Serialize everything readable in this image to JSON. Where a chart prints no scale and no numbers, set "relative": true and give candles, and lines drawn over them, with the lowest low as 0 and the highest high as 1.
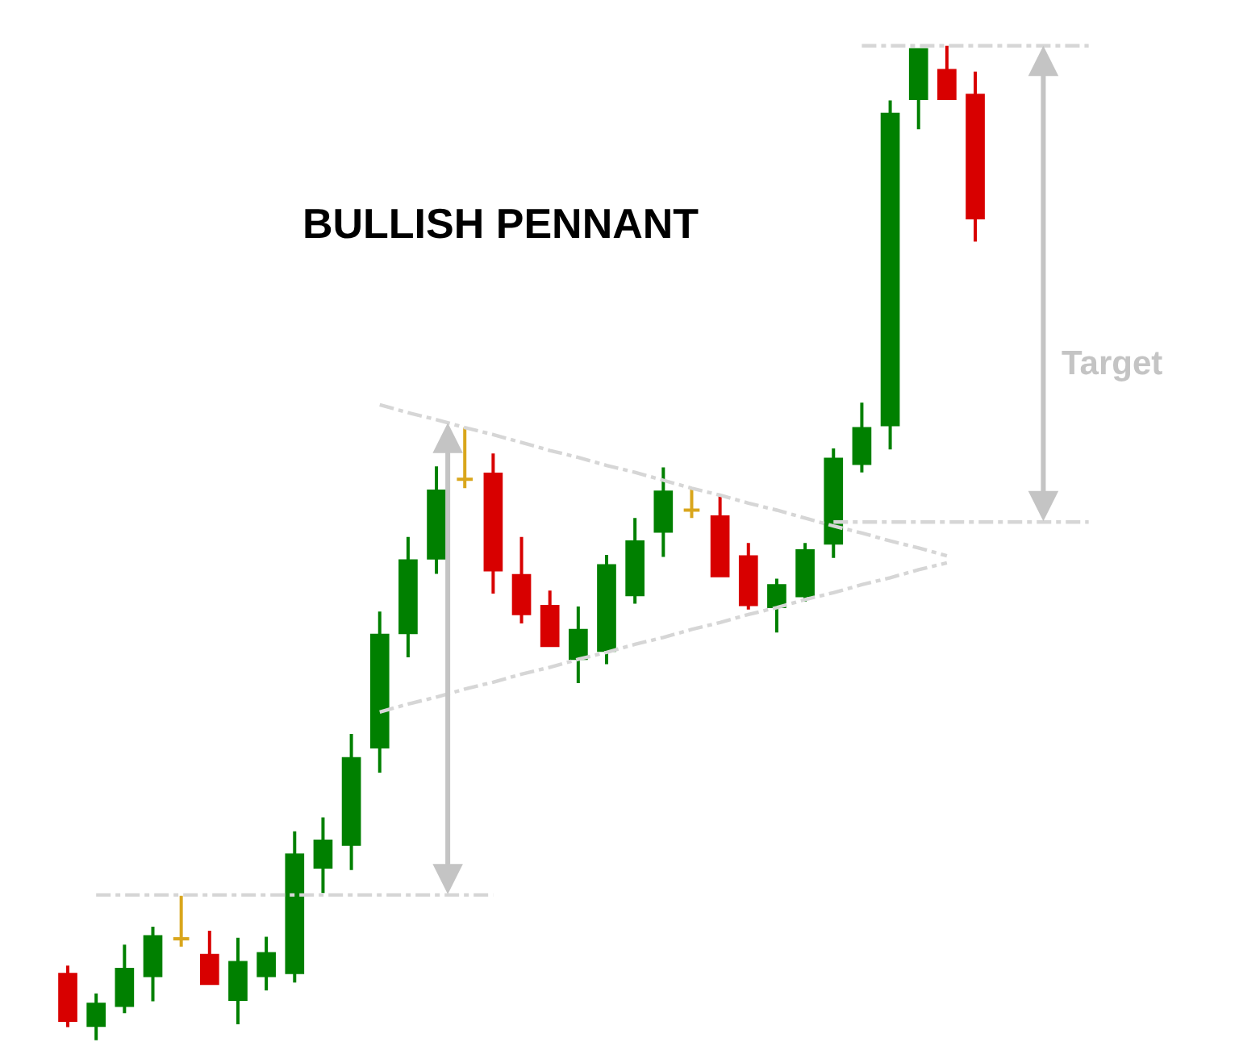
{
  "chart_data": {
    "type": "candlestick",
    "title": "BULLISH PENNANT",
    "relative": true,
    "categories": [
      null,
      null,
      null,
      null,
      null,
      null,
      null,
      null,
      null,
      null,
      null,
      null,
      null,
      null,
      null,
      null,
      null,
      null,
      null,
      null,
      null,
      null,
      null,
      null,
      null,
      null,
      null,
      null,
      null,
      null,
      null,
      null,
      null,
      null,
      null,
      null,
      null
    ],
    "ohlc": [
      [
        0.066,
        0.075,
        0.013,
        0.02
      ],
      [
        0.015,
        0.047,
        0.0,
        0.036
      ],
      [
        0.035,
        0.096,
        0.027,
        0.071
      ],
      [
        0.065,
        0.114,
        0.039,
        0.104
      ],
      [
        0.102,
        0.145,
        0.094,
        0.102
      ],
      [
        0.085,
        0.11,
        0.057,
        0.057
      ],
      [
        0.041,
        0.103,
        0.016,
        0.078
      ],
      [
        0.065,
        0.104,
        0.05,
        0.087
      ],
      [
        0.068,
        0.21,
        0.058,
        0.186
      ],
      [
        0.174,
        0.224,
        0.148,
        0.2
      ],
      [
        0.197,
        0.308,
        0.171,
        0.283
      ],
      [
        0.295,
        0.431,
        0.269,
        0.407
      ],
      [
        0.41,
        0.506,
        0.385,
        0.482
      ],
      [
        0.485,
        0.577,
        0.469,
        0.552
      ],
      [
        0.564,
        0.616,
        0.555,
        0.564
      ],
      [
        0.569,
        0.59,
        0.449,
        0.473
      ],
      [
        0.467,
        0.506,
        0.419,
        0.429
      ],
      [
        0.436,
        0.452,
        0.397,
        0.397
      ],
      [
        0.384,
        0.436,
        0.359,
        0.412
      ],
      [
        0.392,
        0.488,
        0.378,
        0.477
      ],
      [
        0.448,
        0.525,
        0.439,
        0.501
      ],
      [
        0.512,
        0.576,
        0.486,
        0.551
      ],
      [
        0.533,
        0.555,
        0.525,
        0.533
      ],
      [
        0.526,
        0.548,
        0.467,
        0.467
      ],
      [
        0.486,
        0.5,
        0.433,
        0.438
      ],
      [
        0.436,
        0.464,
        0.41,
        0.457
      ],
      [
        0.447,
        0.5,
        0.441,
        0.492
      ],
      [
        0.5,
        0.595,
        0.485,
        0.584
      ],
      [
        0.58,
        0.641,
        0.571,
        0.615
      ],
      [
        0.619,
        0.945,
        0.594,
        0.931
      ],
      [
        0.947,
        0.996,
        0.916,
        0.996
      ],
      [
        0.975,
        1.0,
        0.947,
        0.947
      ],
      [
        0.95,
        0.974,
        0.803,
        0.827
      ],
      null,
      null,
      null,
      null
    ],
    "colors": [
      "#d80000",
      "#008000",
      "#008000",
      "#008000",
      "#d9a61c",
      "#d80000",
      "#008000",
      "#008000",
      "#008000",
      "#008000",
      "#008000",
      "#008000",
      "#008000",
      "#008000",
      "#d9a61c",
      "#d80000",
      "#d80000",
      "#d80000",
      "#008000",
      "#008000",
      "#008000",
      "#008000",
      "#d9a61c",
      "#d80000",
      "#d80000",
      "#008000",
      "#008000",
      "#008000",
      "#008000",
      "#008000",
      "#008000",
      "#d80000",
      "#d80000",
      null,
      null,
      null,
      null
    ],
    "series": [
      {
        "type": "line",
        "color": "#d6d6d6",
        "line_style": "dashed",
        "values": [
          null,
          0.146,
          0.146,
          0.146,
          0.146,
          0.146,
          0.146,
          0.146,
          0.146,
          0.146,
          0.146,
          0.146,
          0.146,
          0.146,
          0.146,
          0.146,
          null,
          null,
          null,
          null,
          null,
          null,
          null,
          null,
          null,
          null,
          null,
          null,
          null,
          null,
          null,
          null,
          null,
          null,
          null,
          null,
          null
        ]
      },
      {
        "type": "line",
        "color": "#d6d6d6",
        "line_style": "dashed",
        "values": [
          null,
          null,
          null,
          null,
          null,
          null,
          null,
          null,
          null,
          null,
          null,
          0.639,
          0.631,
          0.624,
          0.616,
          0.609,
          0.601,
          0.593,
          0.586,
          0.578,
          0.571,
          0.563,
          0.555,
          0.548,
          0.54,
          0.533,
          0.525,
          0.517,
          0.51,
          0.502,
          0.495,
          0.487,
          null,
          null,
          null,
          null,
          null
        ]
      },
      {
        "type": "line",
        "color": "#d6d6d6",
        "line_style": "dashed",
        "values": [
          null,
          null,
          null,
          null,
          null,
          null,
          null,
          null,
          null,
          null,
          null,
          0.33,
          0.338,
          0.345,
          0.353,
          0.36,
          0.368,
          0.375,
          0.383,
          0.39,
          0.398,
          0.405,
          0.413,
          0.42,
          0.428,
          0.435,
          0.443,
          0.45,
          0.458,
          0.465,
          0.473,
          0.48,
          null,
          null,
          null,
          null,
          null
        ]
      },
      {
        "type": "line",
        "color": "#d6d6d6",
        "line_style": "dashed",
        "values": [
          null,
          null,
          null,
          null,
          null,
          null,
          null,
          null,
          null,
          null,
          null,
          null,
          null,
          null,
          null,
          null,
          null,
          null,
          null,
          null,
          null,
          null,
          null,
          null,
          null,
          null,
          null,
          0.521,
          0.521,
          0.521,
          0.521,
          0.521,
          0.521,
          0.521,
          0.521,
          0.521,
          0.521
        ]
      },
      {
        "type": "line",
        "color": "#d6d6d6",
        "line_style": "dashed",
        "values": [
          null,
          null,
          null,
          null,
          null,
          null,
          null,
          null,
          null,
          null,
          null,
          null,
          null,
          null,
          null,
          null,
          null,
          null,
          null,
          null,
          null,
          null,
          null,
          null,
          null,
          null,
          null,
          null,
          1.0,
          1.0,
          1.0,
          1.0,
          1.0,
          1.0,
          1.0,
          1.0,
          1.0
        ]
      }
    ],
    "annotations": [
      "Target"
    ]
  }
}
